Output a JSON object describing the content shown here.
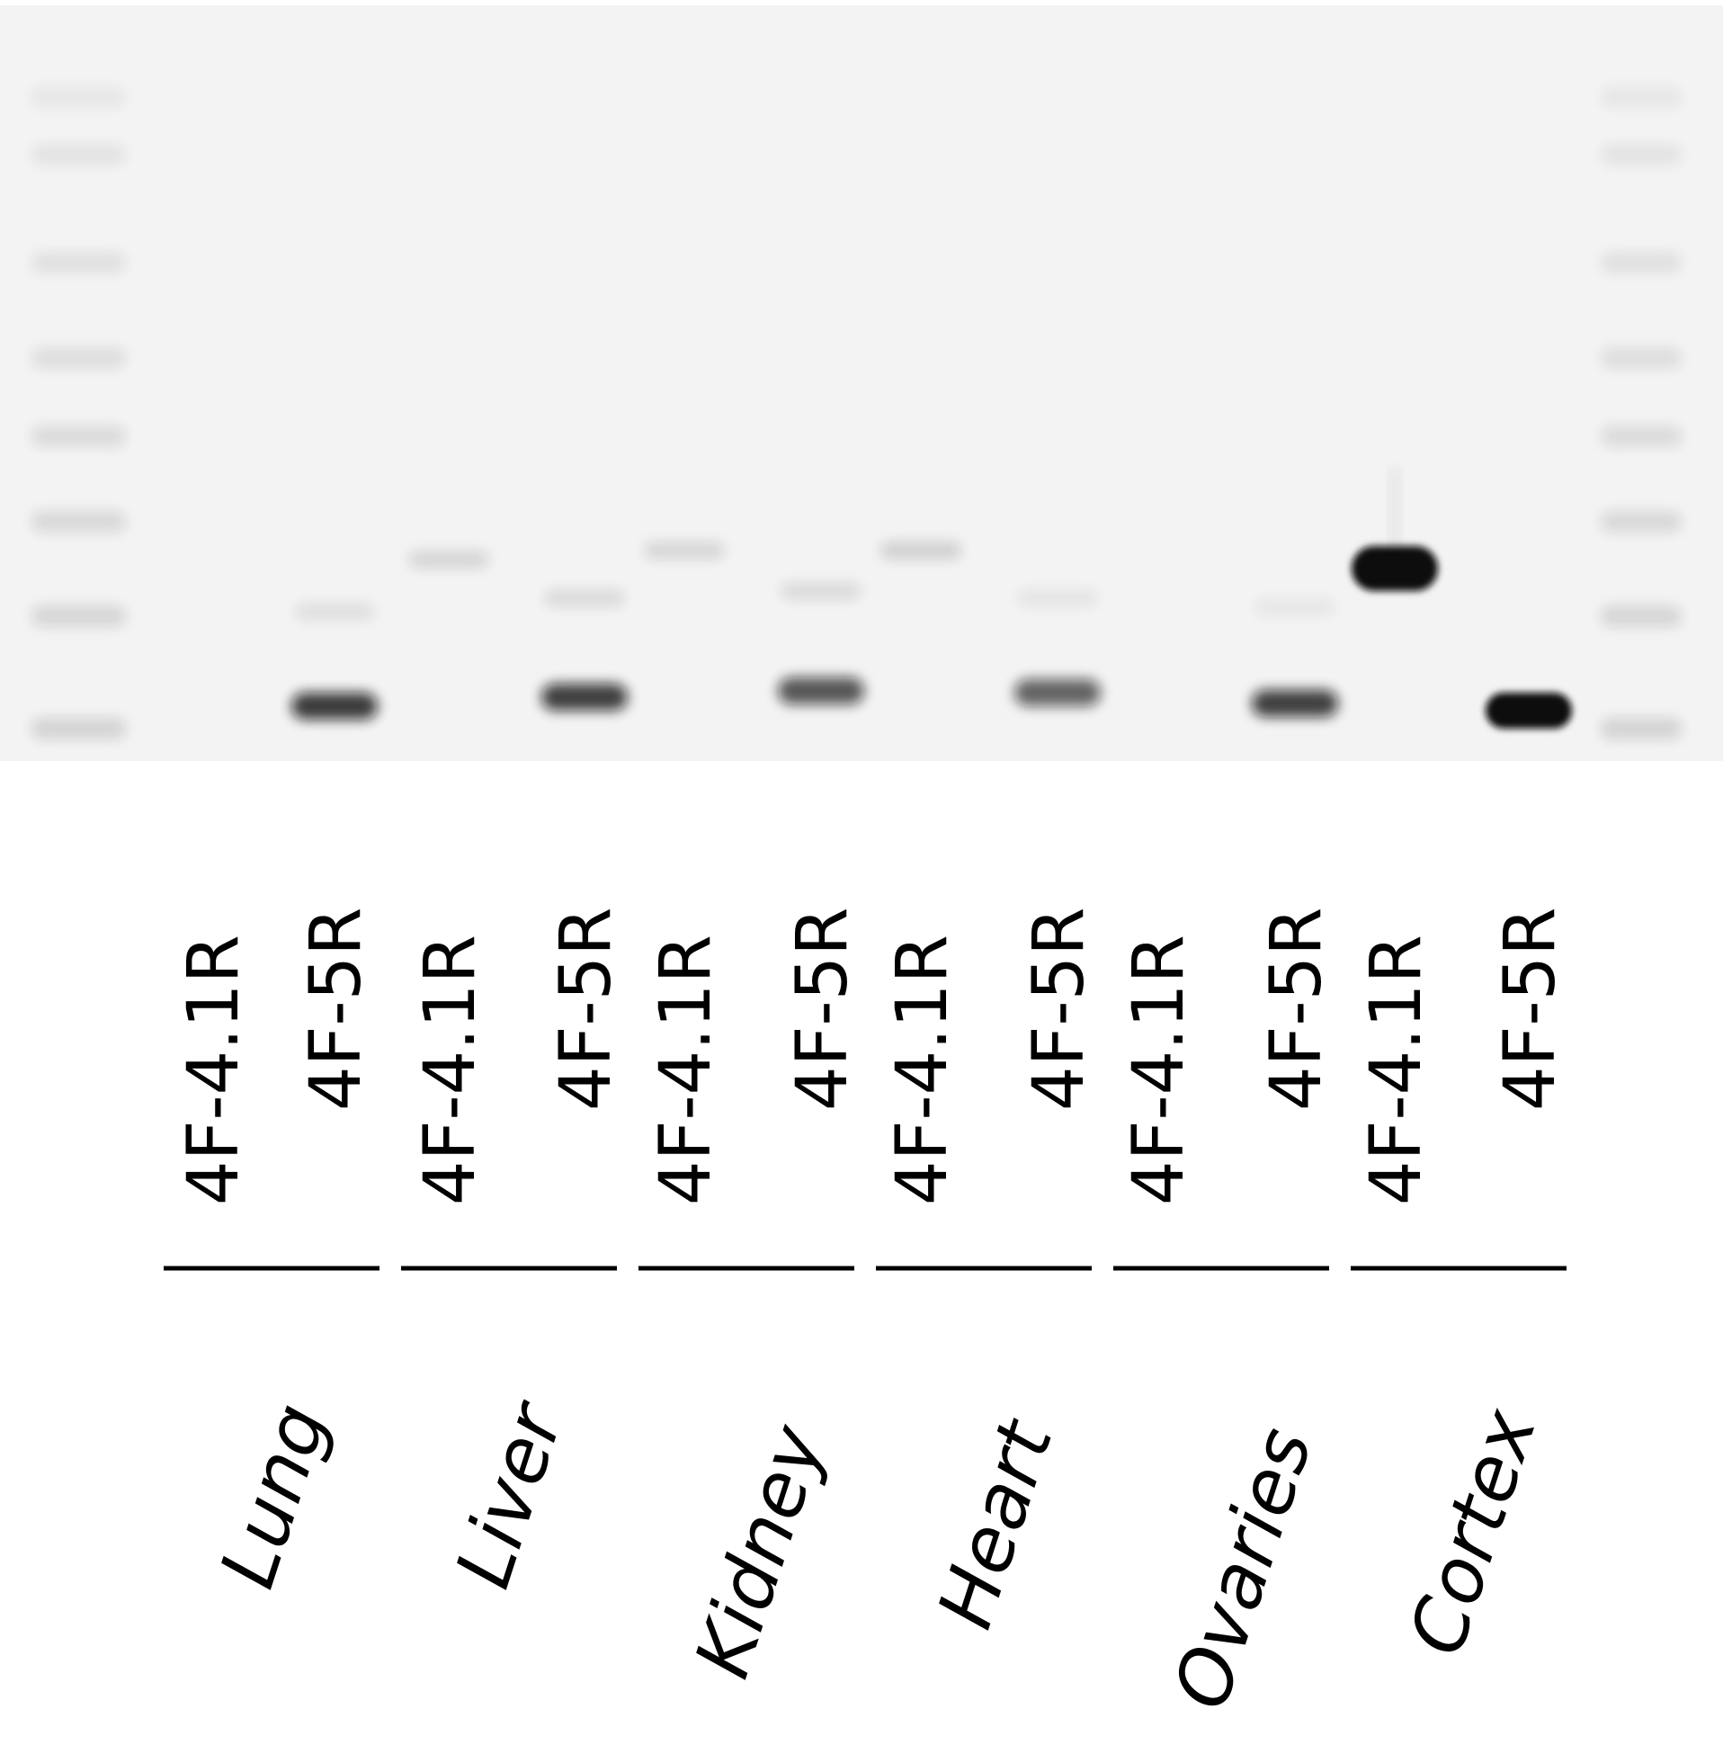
{
  "colors": {
    "background": "#ffffff",
    "gel": "#f3f3f3",
    "band": "#111111",
    "text": "#000000"
  },
  "lanes": [
    {
      "primer": "4F-4.1R",
      "tissue": "Lung",
      "main_band": 0.0,
      "faint_band": 0.0
    },
    {
      "primer": "4F-5R",
      "tissue": "Lung",
      "main_band": 0.8,
      "faint_band": 0.08
    },
    {
      "primer": "4F-4.1R",
      "tissue": "Liver",
      "main_band": 0.0,
      "faint_band": 0.12
    },
    {
      "primer": "4F-5R",
      "tissue": "Liver",
      "main_band": 0.78,
      "faint_band": 0.1
    },
    {
      "primer": "4F-4.1R",
      "tissue": "Kidney",
      "main_band": 0.0,
      "faint_band": 0.12
    },
    {
      "primer": "4F-5R",
      "tissue": "Kidney",
      "main_band": 0.68,
      "faint_band": 0.1
    },
    {
      "primer": "4F-4.1R",
      "tissue": "Heart",
      "main_band": 0.0,
      "faint_band": 0.15
    },
    {
      "primer": "4F-5R",
      "tissue": "Heart",
      "main_band": 0.62,
      "faint_band": 0.06
    },
    {
      "primer": "4F-4.1R",
      "tissue": "Ovaries",
      "main_band": 0.0,
      "faint_band": 0.0
    },
    {
      "primer": "4F-5R",
      "tissue": "Ovaries",
      "main_band": 0.78,
      "faint_band": 0.05
    },
    {
      "primer": "4F-4.1R",
      "tissue": "Cortex",
      "main_band": 1.0,
      "faint_band": 0.0
    },
    {
      "primer": "4F-5R",
      "tissue": "Cortex",
      "main_band": 1.0,
      "faint_band": 0.0
    }
  ],
  "groups": [
    {
      "tissue": "Lung"
    },
    {
      "tissue": "Liver"
    },
    {
      "tissue": "Kidney"
    },
    {
      "tissue": "Heart"
    },
    {
      "tissue": "Ovaries"
    },
    {
      "tissue": "Cortex"
    }
  ],
  "ladder": {
    "bands": 8
  }
}
